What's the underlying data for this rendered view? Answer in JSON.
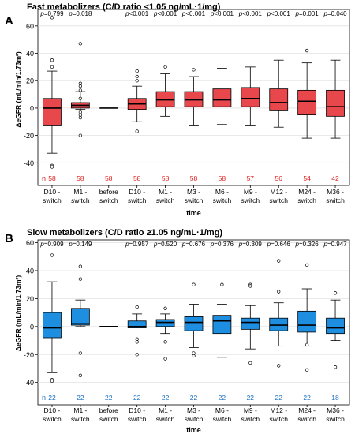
{
  "chart_data": [
    {
      "type": "box",
      "panel_label": "A",
      "title": "Fast metabolizers (C/D ratio <1.05 ng/mL·1/mg)",
      "xlabel": "time",
      "ylabel": "ΔeGFR (mL/min/1.73m²)",
      "ylim": [
        -45,
        72
      ],
      "yticks": [
        -40,
        -20,
        0,
        20,
        40,
        60
      ],
      "grid": true,
      "box_color": "#e8474c",
      "n_color": "#e02020",
      "n_label": "n",
      "categories": [
        {
          "label1": "D10 -",
          "label2": "switch",
          "p": "p=0.799",
          "n": "58",
          "box": {
            "whislo": -33,
            "q1": -13,
            "med": 0,
            "q3": 7,
            "whishi": 27,
            "outliers": [
              -42,
              -43,
              30,
              35,
              66
            ]
          }
        },
        {
          "label1": "M1 -",
          "label2": "switch",
          "p": "p=0.018",
          "n": "58",
          "box": {
            "whislo": -1,
            "q1": 0,
            "med": 2,
            "q3": 4,
            "whishi": 12,
            "outliers": [
              -3,
              -5,
              -7,
              -20,
              7,
              13,
              16,
              18,
              47
            ]
          }
        },
        {
          "label1": "before",
          "label2": "switch",
          "p": "",
          "n": "58",
          "box": {
            "whislo": 0,
            "q1": 0,
            "med": 0,
            "q3": 0,
            "whishi": 0,
            "outliers": []
          }
        },
        {
          "label1": "D10 -",
          "label2": "switch",
          "p": "p<0.001",
          "n": "58",
          "box": {
            "whislo": -10,
            "q1": -1,
            "med": 3,
            "q3": 7,
            "whishi": 16,
            "outliers": [
              -17,
              20,
              23,
              27
            ]
          }
        },
        {
          "label1": "M1 -",
          "label2": "switch",
          "p": "p<0.001",
          "n": "58",
          "box": {
            "whislo": -6,
            "q1": 1,
            "med": 6,
            "q3": 12,
            "whishi": 25,
            "outliers": [
              30
            ]
          }
        },
        {
          "label1": "M3 -",
          "label2": "switch",
          "p": "p<0.001",
          "n": "58",
          "box": {
            "whislo": -13,
            "q1": 1,
            "med": 6,
            "q3": 12,
            "whishi": 23,
            "outliers": [
              28
            ]
          }
        },
        {
          "label1": "M6 -",
          "label2": "switch",
          "p": "p<0.001",
          "n": "58",
          "box": {
            "whislo": -12,
            "q1": 1,
            "med": 6,
            "q3": 14,
            "whishi": 29,
            "outliers": []
          }
        },
        {
          "label1": "M9 -",
          "label2": "switch",
          "p": "p<0.001",
          "n": "57",
          "box": {
            "whislo": -13,
            "q1": 1,
            "med": 7,
            "q3": 15,
            "whishi": 30,
            "outliers": []
          }
        },
        {
          "label1": "M12 -",
          "label2": "switch",
          "p": "p<0.001",
          "n": "56",
          "box": {
            "whislo": -14,
            "q1": -2,
            "med": 4,
            "q3": 14,
            "whishi": 35,
            "outliers": []
          }
        },
        {
          "label1": "M24 -",
          "label2": "switch",
          "p": "p=0.001",
          "n": "54",
          "box": {
            "whislo": -22,
            "q1": -5,
            "med": 5,
            "q3": 13,
            "whishi": 33,
            "outliers": [
              42
            ]
          }
        },
        {
          "label1": "M36 -",
          "label2": "switch",
          "p": "p=0.040",
          "n": "42",
          "box": {
            "whislo": -22,
            "q1": -6,
            "med": 1,
            "q3": 13,
            "whishi": 35,
            "outliers": []
          }
        }
      ]
    },
    {
      "type": "box",
      "panel_label": "B",
      "title": "Slow metabolizers (C/D ratio ≥1.05 ng/mL·1/mg)",
      "xlabel": "time",
      "ylabel": "ΔeGFR (mL/min/1.73m²)",
      "ylim": [
        -43,
        62
      ],
      "yticks": [
        -40,
        -20,
        0,
        20,
        40,
        60
      ],
      "grid": true,
      "box_color": "#1e8ee0",
      "n_color": "#1a6fc4",
      "n_label": "n",
      "categories": [
        {
          "label1": "D10 -",
          "label2": "switch",
          "p": "p=0.909",
          "n": "22",
          "box": {
            "whislo": -33,
            "q1": -8,
            "med": -1,
            "q3": 10,
            "whishi": 32,
            "outliers": [
              -38,
              -39,
              51
            ]
          }
        },
        {
          "label1": "M1 -",
          "label2": "switch",
          "p": "p=0.149",
          "n": "22",
          "box": {
            "whislo": 0,
            "q1": 1,
            "med": 2,
            "q3": 13,
            "whishi": 19,
            "outliers": [
              -19,
              -35,
              34,
              43
            ]
          }
        },
        {
          "label1": "before",
          "label2": "switch",
          "p": "",
          "n": "22",
          "box": {
            "whislo": 0,
            "q1": 0,
            "med": 0,
            "q3": 0,
            "whishi": 0,
            "outliers": []
          }
        },
        {
          "label1": "D10 -",
          "label2": "switch",
          "p": "p=0.957",
          "n": "22",
          "box": {
            "whislo": -1,
            "q1": -1,
            "med": 0,
            "q3": 4,
            "whishi": 9,
            "outliers": [
              -11,
              -9,
              14,
              -20
            ]
          }
        },
        {
          "label1": "M1 -",
          "label2": "switch",
          "p": "p=0.520",
          "n": "22",
          "box": {
            "whislo": -5,
            "q1": 0,
            "med": 3,
            "q3": 5,
            "whishi": 9,
            "outliers": [
              -11,
              13,
              -23
            ]
          }
        },
        {
          "label1": "M3 -",
          "label2": "switch",
          "p": "p=0.676",
          "n": "22",
          "box": {
            "whislo": -15,
            "q1": -3,
            "med": 3,
            "q3": 7,
            "whishi": 16,
            "outliers": [
              -19,
              -21,
              30
            ]
          }
        },
        {
          "label1": "M6 -",
          "label2": "switch",
          "p": "p=0.376",
          "n": "22",
          "box": {
            "whislo": -22,
            "q1": -5,
            "med": 4,
            "q3": 8,
            "whishi": 16,
            "outliers": [
              30
            ]
          }
        },
        {
          "label1": "M9 -",
          "label2": "switch",
          "p": "p=0.309",
          "n": "22",
          "box": {
            "whislo": -16,
            "q1": -2,
            "med": 3,
            "q3": 6,
            "whishi": 15,
            "outliers": [
              30,
              29,
              -26
            ]
          }
        },
        {
          "label1": "M12 -",
          "label2": "switch",
          "p": "p=0.646",
          "n": "22",
          "box": {
            "whislo": -14,
            "q1": -3,
            "med": 1,
            "q3": 6,
            "whishi": 17,
            "outliers": [
              -28,
              25,
              47
            ]
          }
        },
        {
          "label1": "M24 -",
          "label2": "switch",
          "p": "p=0.326",
          "n": "22",
          "box": {
            "whislo": -14,
            "q1": -4,
            "med": 1,
            "q3": 11,
            "whishi": 27,
            "outliers": [
              -31,
              44,
              -13
            ]
          }
        },
        {
          "label1": "M36 -",
          "label2": "switch",
          "p": "p=0.947",
          "n": "18",
          "box": {
            "whislo": -10,
            "q1": -5,
            "med": -1,
            "q3": 6,
            "whishi": 19,
            "outliers": [
              24,
              -29
            ]
          }
        }
      ]
    }
  ]
}
